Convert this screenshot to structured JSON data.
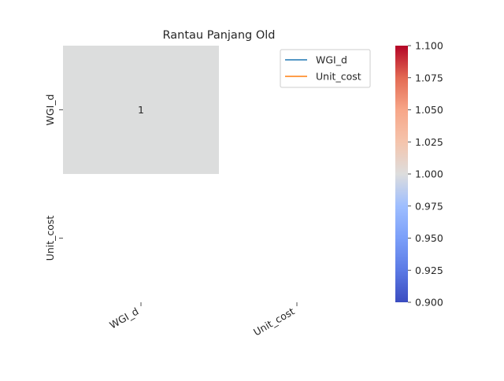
{
  "chart_data": {
    "type": "heatmap",
    "title": "Rantau Panjang Old",
    "x_categories": [
      "WGI_d",
      "Unit_cost"
    ],
    "y_categories": [
      "WGI_d",
      "Unit_cost"
    ],
    "values": [
      [
        1,
        null
      ],
      [
        null,
        null
      ]
    ],
    "annotations": [
      [
        "1",
        ""
      ],
      [
        "",
        ""
      ]
    ],
    "cell_colors": [
      [
        "#dcdddd",
        null
      ],
      [
        null,
        null
      ]
    ],
    "colorbar": {
      "colormap": "coolwarm",
      "range": [
        0.9,
        1.1
      ],
      "ticks": [
        "0.900",
        "0.925",
        "0.950",
        "0.975",
        "1.000",
        "1.025",
        "1.050",
        "1.075",
        "1.100"
      ]
    },
    "legend": {
      "placement": "top-right",
      "entries": [
        {
          "label": "WGI_d",
          "color": "#1f77b4"
        },
        {
          "label": "Unit_cost",
          "color": "#ff7f0e"
        }
      ]
    }
  }
}
